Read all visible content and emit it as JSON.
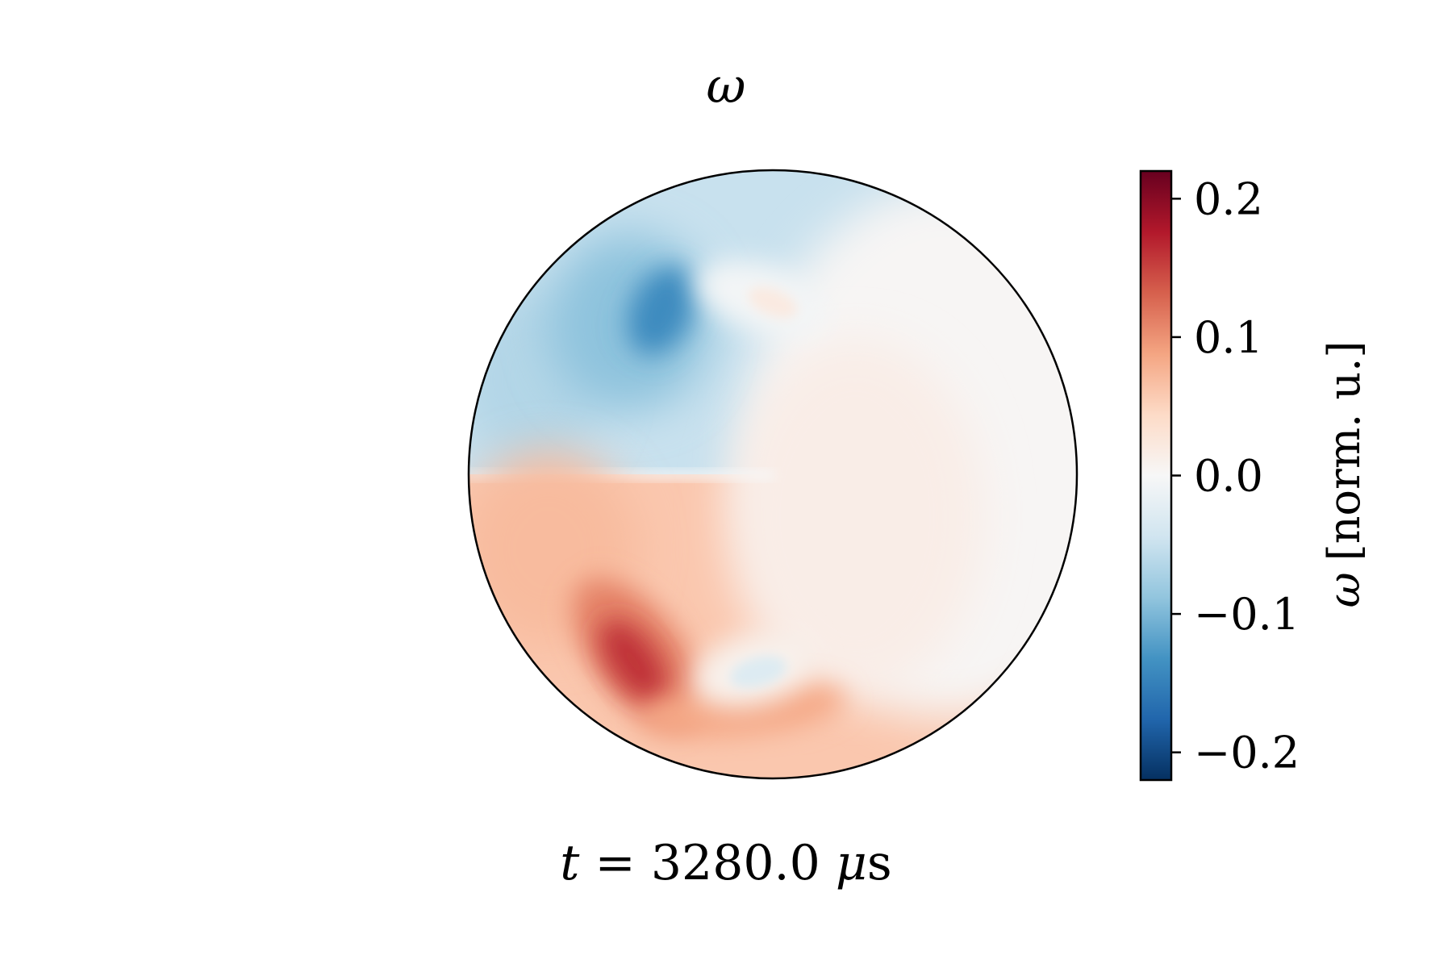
{
  "chart_data": {
    "type": "heatmap",
    "title": "ω",
    "annotation": {
      "variable": "t",
      "equals": "=",
      "value": "3280.0",
      "unit_prefix": "μ",
      "unit": "s"
    },
    "colorbar": {
      "label_symbol": "ω",
      "label_unit": "[norm. u.]",
      "range": [
        -0.22,
        0.22
      ],
      "ticks": [
        0.2,
        0.1,
        0.0,
        -0.1,
        -0.2
      ],
      "tick_labels": [
        "0.2",
        "0.1",
        "0.0",
        "−0.1",
        "−0.2"
      ],
      "colormap": "RdBu_r",
      "colors": [
        "#053061",
        "#2166ac",
        "#4393c3",
        "#92c5de",
        "#d1e5f0",
        "#f7f7f7",
        "#fddbc7",
        "#f4a582",
        "#d6604d",
        "#b2182b",
        "#67001f"
      ]
    },
    "domain": "disk",
    "field_features": [
      {
        "kind": "background-upper",
        "value": -0.05
      },
      {
        "kind": "background-lower",
        "value": 0.06
      },
      {
        "kind": "negative-vortex",
        "value": -0.14
      },
      {
        "kind": "positive-spot",
        "value": 0.02
      },
      {
        "kind": "positive-vortex",
        "value": 0.16
      },
      {
        "kind": "negative-spot",
        "value": -0.03
      }
    ]
  }
}
